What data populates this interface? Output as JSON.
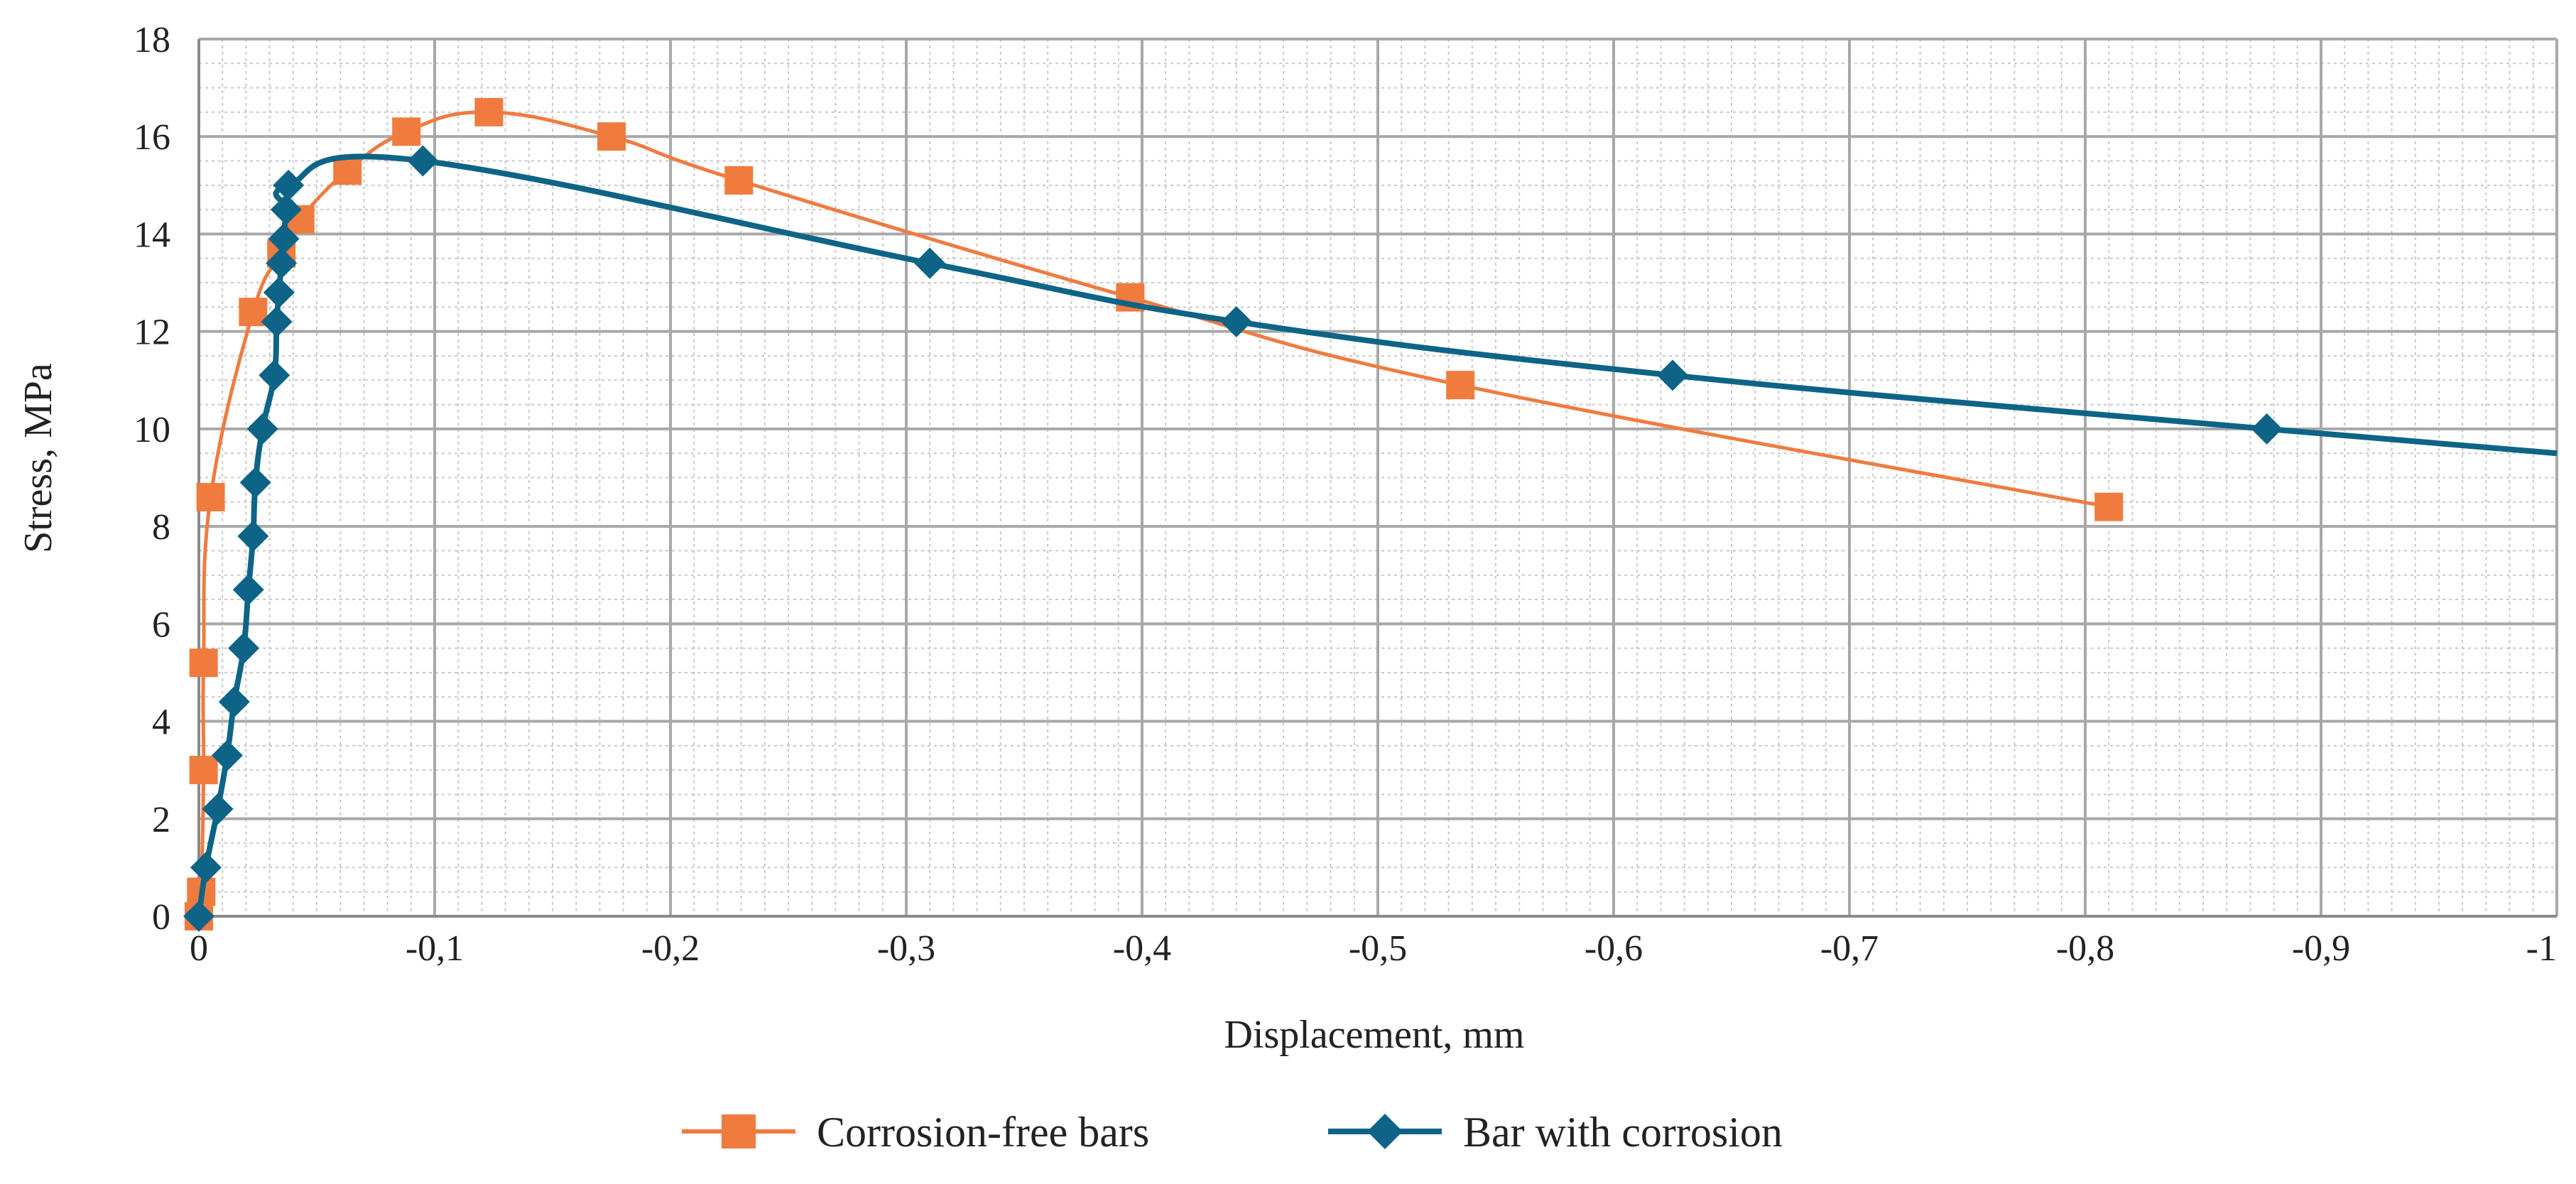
{
  "chart_data": {
    "type": "line",
    "title": "",
    "xlabel": "Displacement, mm",
    "ylabel": "Stress, MPa",
    "xlim": [
      0,
      -1
    ],
    "ylim": [
      0,
      18
    ],
    "x_ticks": [
      0,
      -0.1,
      -0.2,
      -0.3,
      -0.4,
      -0.5,
      -0.6,
      -0.7,
      -0.8,
      -0.9,
      -1
    ],
    "x_tick_labels": [
      "0",
      "-0,1",
      "-0,2",
      "-0,3",
      "-0,4",
      "-0,5",
      "-0,6",
      "-0,7",
      "-0,8",
      "-0,9",
      "-1"
    ],
    "y_ticks": [
      0,
      2,
      4,
      6,
      8,
      10,
      12,
      14,
      16,
      18
    ],
    "y_tick_labels": [
      "0",
      "2",
      "4",
      "6",
      "8",
      "10",
      "12",
      "14",
      "16",
      "18"
    ],
    "grid": true,
    "minor_grid": true,
    "legend_position": "bottom",
    "series": [
      {
        "name": "Corrosion-free bars",
        "color": "#F07B3F",
        "marker": "square",
        "x": [
          0,
          -0.001,
          -0.002,
          -0.002,
          -0.005,
          -0.023,
          -0.035,
          -0.043,
          -0.063,
          -0.088,
          -0.123,
          -0.175,
          -0.229,
          -0.395,
          -0.535,
          -0.81
        ],
        "y": [
          0,
          0.5,
          3.0,
          5.2,
          8.6,
          12.4,
          13.6,
          14.3,
          15.3,
          16.1,
          16.5,
          16.0,
          15.1,
          12.7,
          10.9,
          8.4
        ]
      },
      {
        "name": "Bar with corrosion",
        "color": "#0E6487",
        "marker": "diamond",
        "x": [
          0,
          -0.003,
          -0.008,
          -0.012,
          -0.015,
          -0.019,
          -0.021,
          -0.023,
          -0.024,
          -0.027,
          -0.032,
          -0.033,
          -0.034,
          -0.035,
          -0.036,
          -0.037,
          -0.038,
          -0.095,
          -0.31,
          -0.44,
          -0.625,
          -0.877,
          -1.0
        ],
        "y": [
          0,
          1.0,
          2.2,
          3.3,
          4.4,
          5.5,
          6.7,
          7.8,
          8.9,
          10.0,
          11.1,
          12.2,
          12.8,
          13.4,
          13.9,
          14.5,
          15.0,
          15.5,
          13.4,
          12.2,
          11.1,
          10.0,
          9.5
        ],
        "markers_on_last_point": false
      }
    ]
  }
}
